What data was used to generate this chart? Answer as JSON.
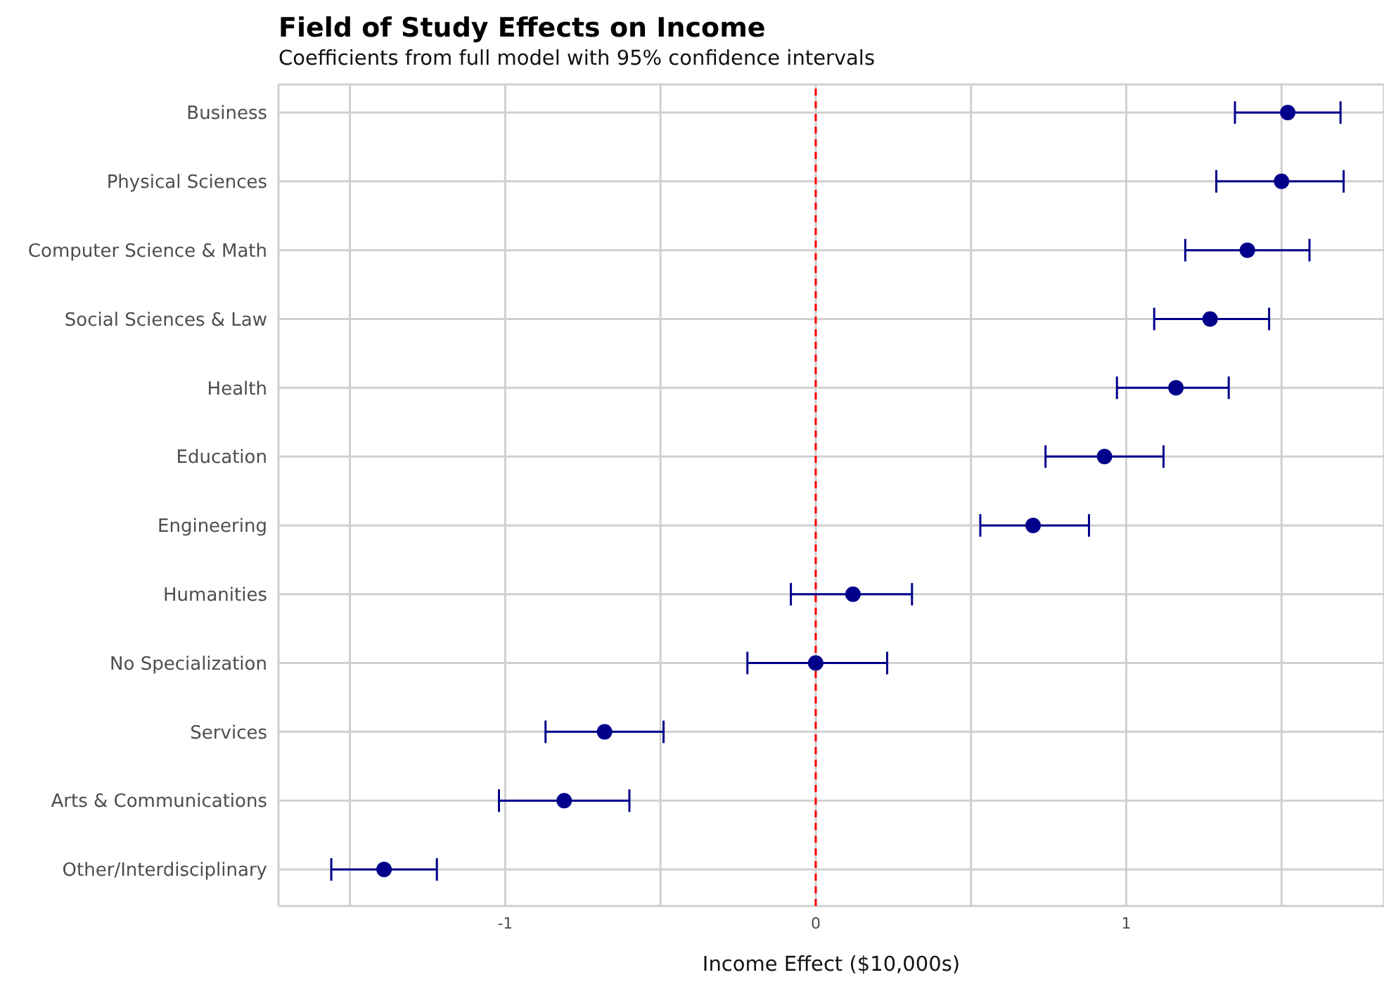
{
  "chart_data": {
    "type": "scatter",
    "orientation": "horizontal",
    "title": "Field of Study Effects on Income",
    "subtitle": "Coefficients from full model with 95% confidence intervals",
    "xlabel": "Income Effect ($10,000s)",
    "categories": [
      "Business",
      "Physical Sciences",
      "Computer Science & Math",
      "Social Sciences & Law",
      "Health",
      "Education",
      "Engineering",
      "Humanities",
      "No Specialization",
      "Services",
      "Arts & Communications",
      "Other/Interdisciplinary"
    ],
    "series": [
      {
        "color": "#00008b",
        "values": [
          1.52,
          1.5,
          1.39,
          1.27,
          1.16,
          0.93,
          0.7,
          0.12,
          0,
          -0.68,
          -0.81,
          -1.39
        ],
        "errors": [
          [
            1.35,
            1.69
          ],
          [
            1.29,
            1.7
          ],
          [
            1.19,
            1.59
          ],
          [
            1.09,
            1.46
          ],
          [
            0.97,
            1.33
          ],
          [
            0.74,
            1.12
          ],
          [
            0.53,
            0.88
          ],
          [
            -0.08,
            0.31
          ],
          [
            -0.22,
            0.23
          ],
          [
            -0.87,
            -0.49
          ],
          [
            -1.02,
            -0.6
          ],
          [
            -1.56,
            -1.22
          ]
        ]
      }
    ],
    "xlim": [
      -1.73,
      1.83
    ],
    "xticks": [
      {
        "value": -1.5,
        "label": null
      },
      -1,
      {
        "value": -0.5,
        "label": null
      },
      0,
      {
        "value": 0.5,
        "label": null
      },
      1,
      {
        "value": 1.5,
        "label": null
      }
    ],
    "ref_lines": [
      {
        "axis": "x",
        "value": 0,
        "color": "#ff0000",
        "line_style": "dashed"
      }
    ],
    "grid": true,
    "marker": "circle"
  }
}
